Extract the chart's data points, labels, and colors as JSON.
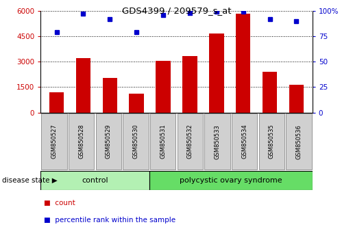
{
  "title": "GDS4399 / 209579_s_at",
  "samples": [
    "GSM850527",
    "GSM850528",
    "GSM850529",
    "GSM850530",
    "GSM850531",
    "GSM850532",
    "GSM850533",
    "GSM850534",
    "GSM850535",
    "GSM850536"
  ],
  "counts": [
    1200,
    3200,
    2050,
    1100,
    3050,
    3350,
    4650,
    5850,
    2400,
    1650
  ],
  "percentiles": [
    79,
    97,
    92,
    79,
    96,
    98,
    99,
    99,
    92,
    90
  ],
  "ylim_left": [
    0,
    6000
  ],
  "ylim_right": [
    0,
    100
  ],
  "yticks_left": [
    0,
    1500,
    3000,
    4500,
    6000
  ],
  "yticks_right": [
    0,
    25,
    50,
    75,
    100
  ],
  "bar_color": "#cc0000",
  "dot_color": "#0000cc",
  "control_indices": [
    0,
    1,
    2,
    3
  ],
  "pcos_indices": [
    4,
    5,
    6,
    7,
    8,
    9
  ],
  "label_control": "control",
  "label_pcos": "polycystic ovary syndrome",
  "disease_state_label": "disease state",
  "legend_count": "count",
  "legend_percentile": "percentile rank within the sample",
  "control_color": "#b3f0b3",
  "pcos_color": "#66dd66",
  "tick_label_bg": "#d0d0d0"
}
